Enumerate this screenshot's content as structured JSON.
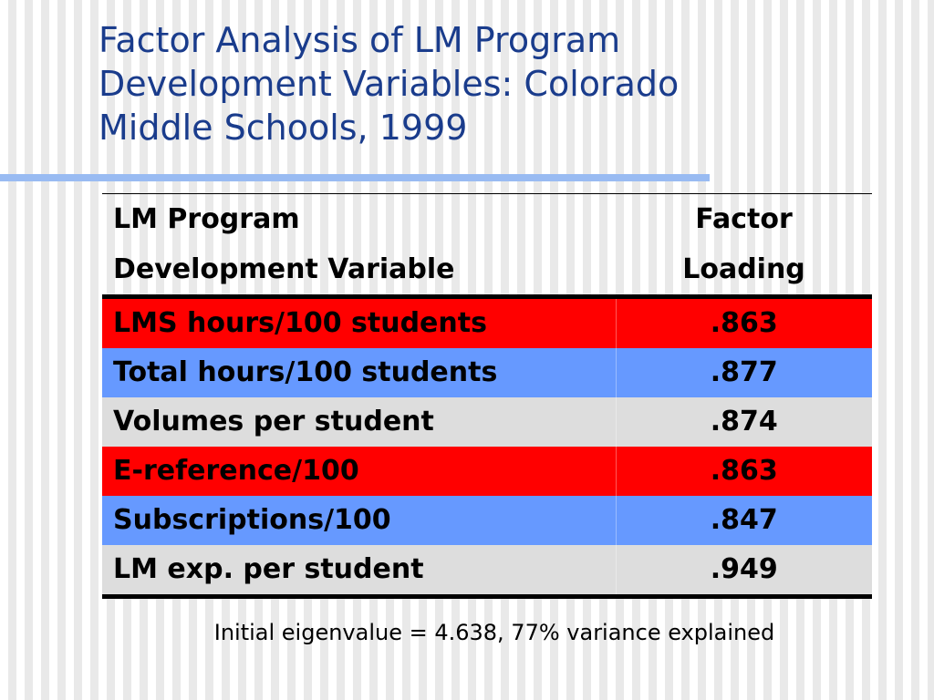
{
  "slide": {
    "title": "Factor Analysis of LM Program\nDevelopment Variables: Colorado\nMiddle Schools, 1999",
    "footnote": "Initial eigenvalue = 4.638, 77% variance explained"
  },
  "table": {
    "header": {
      "variable_line1": "LM Program",
      "variable_line2": "Development Variable",
      "loading_line1": "Factor",
      "loading_line2": "Loading"
    },
    "rows": [
      {
        "variable": "LMS hours/100 students",
        "loading": ".863",
        "color": "#ff0000"
      },
      {
        "variable": "Total hours/100 students",
        "loading": ".877",
        "color": "#6699ff"
      },
      {
        "variable": "Volumes per student",
        "loading": ".874",
        "color": "#dddddd"
      },
      {
        "variable": "E-reference/100",
        "loading": ".863",
        "color": "#ff0000"
      },
      {
        "variable": "Subscriptions/100",
        "loading": ".847",
        "color": "#6699ff"
      },
      {
        "variable": "LM exp. per student",
        "loading": ".949",
        "color": "#dddddd"
      }
    ]
  },
  "colors": {
    "title": "#1a3c8c",
    "title_rule": "#99bbf2",
    "row_red": "#ff0000",
    "row_blue": "#6699ff",
    "row_gray": "#dddddd"
  }
}
